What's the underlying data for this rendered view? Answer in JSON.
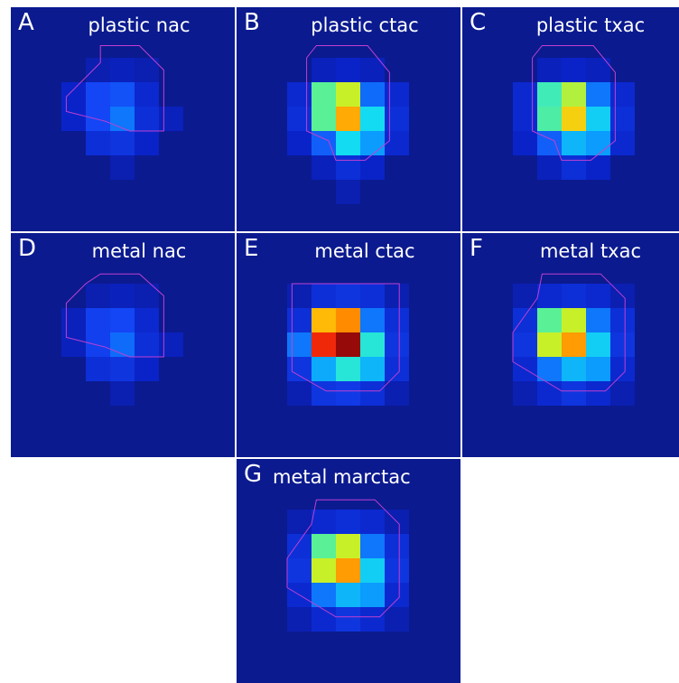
{
  "panels": [
    {
      "letter": "A",
      "title": "plastic nac"
    },
    {
      "letter": "B",
      "title": "plastic ctac"
    },
    {
      "letter": "C",
      "title": "plastic txac"
    },
    {
      "letter": "D",
      "title": "metal nac"
    },
    {
      "letter": "E",
      "title": "metal ctac"
    },
    {
      "letter": "F",
      "title": "metal txac"
    },
    {
      "letter": "G",
      "title": "metal marctac"
    }
  ],
  "colors": {
    "background": "#0b1a8f",
    "contour": "#c040d0",
    "divider": "#8a8fc8"
  }
}
